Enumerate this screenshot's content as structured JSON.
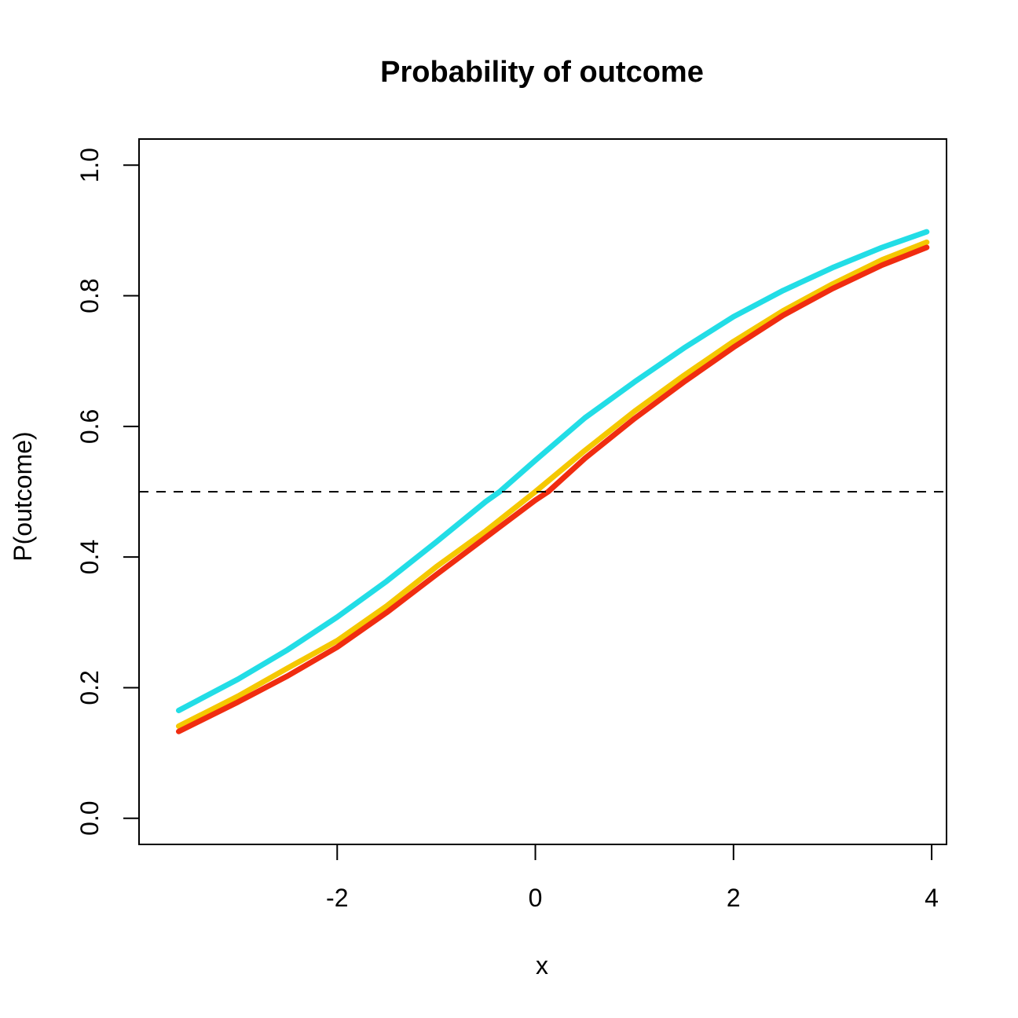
{
  "chart_data": {
    "type": "line",
    "title": "Probability of outcome",
    "xlabel": "x",
    "ylabel": "P(outcome)",
    "xlim": [
      -4.0,
      4.15
    ],
    "ylim": [
      -0.04,
      1.04
    ],
    "x_ticks": [
      {
        "value": -2,
        "label": "-2"
      },
      {
        "value": 0,
        "label": "0"
      },
      {
        "value": 2,
        "label": "2"
      },
      {
        "value": 4,
        "label": "4"
      }
    ],
    "y_ticks": [
      {
        "value": 0.0,
        "label": "0.0"
      },
      {
        "value": 0.2,
        "label": "0.2"
      },
      {
        "value": 0.4,
        "label": "0.4"
      },
      {
        "value": 0.6,
        "label": "0.6"
      },
      {
        "value": 0.8,
        "label": "0.8"
      },
      {
        "value": 1.0,
        "label": "1.0"
      }
    ],
    "reference_line": {
      "y": 0.5,
      "style": "dashed",
      "color": "#000000"
    },
    "grid": false,
    "series": [
      {
        "color": "#22DDE6",
        "x": [
          -3.6,
          -3.0,
          -2.5,
          -2.0,
          -1.5,
          -1.0,
          -0.5,
          -0.36,
          0.0,
          0.5,
          1.0,
          1.5,
          2.0,
          2.5,
          3.0,
          3.5,
          3.95
        ],
        "y": [
          0.165,
          0.213,
          0.258,
          0.308,
          0.363,
          0.423,
          0.485,
          0.5,
          0.548,
          0.613,
          0.668,
          0.72,
          0.768,
          0.808,
          0.843,
          0.874,
          0.898
        ]
      },
      {
        "color": "#F5C800",
        "x": [
          -3.6,
          -3.0,
          -2.5,
          -2.0,
          -1.5,
          -1.0,
          -0.5,
          0.0,
          0.5,
          1.0,
          1.5,
          2.0,
          2.5,
          3.0,
          3.5,
          3.95
        ],
        "y": [
          0.141,
          0.187,
          0.23,
          0.272,
          0.325,
          0.385,
          0.44,
          0.5,
          0.563,
          0.623,
          0.678,
          0.73,
          0.777,
          0.818,
          0.855,
          0.882
        ]
      },
      {
        "color": "#F02C10",
        "x": [
          -3.6,
          -3.0,
          -2.5,
          -2.0,
          -1.5,
          -1.0,
          -0.5,
          0.0,
          0.13,
          0.5,
          1.0,
          1.5,
          2.0,
          2.5,
          3.0,
          3.5,
          3.95
        ],
        "y": [
          0.133,
          0.178,
          0.218,
          0.262,
          0.315,
          0.373,
          0.43,
          0.487,
          0.5,
          0.551,
          0.612,
          0.668,
          0.721,
          0.77,
          0.811,
          0.847,
          0.874
        ]
      }
    ]
  }
}
